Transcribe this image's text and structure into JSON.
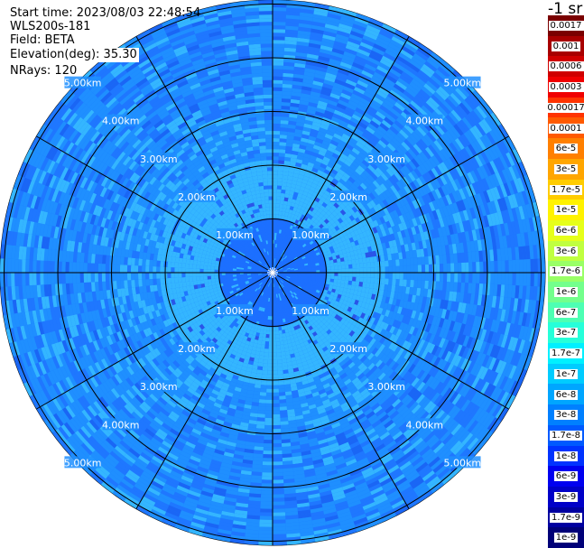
{
  "header": {
    "start_time": "Start time: 2023/08/03 22:48:54",
    "station": "WLS200s-181",
    "field": "Field: BETA",
    "elevation": "Elevation(deg): 35.30",
    "nrays": "NRays: 120"
  },
  "colorbar": {
    "unit_label": "-1 sr",
    "levels": [
      {
        "label": "0.0017",
        "color": "#7a0000"
      },
      {
        "label": "0.001",
        "color": "#a80000"
      },
      {
        "label": "0.0006",
        "color": "#cf0000"
      },
      {
        "label": "0.0003",
        "color": "#f00000"
      },
      {
        "label": "0.00017",
        "color": "#ff3300"
      },
      {
        "label": "0.0001",
        "color": "#ff5a00"
      },
      {
        "label": "6e-5",
        "color": "#ff8000"
      },
      {
        "label": "3e-5",
        "color": "#ffa600"
      },
      {
        "label": "1.7e-5",
        "color": "#ffcc00"
      },
      {
        "label": "1e-5",
        "color": "#fff200"
      },
      {
        "label": "6e-6",
        "color": "#e6ff1a"
      },
      {
        "label": "3e-6",
        "color": "#c0ff40"
      },
      {
        "label": "1.7e-6",
        "color": "#99ff66"
      },
      {
        "label": "1e-6",
        "color": "#73ff8c"
      },
      {
        "label": "6e-7",
        "color": "#4dffb3"
      },
      {
        "label": "3e-7",
        "color": "#26ffd9"
      },
      {
        "label": "1.7e-7",
        "color": "#00f0ff"
      },
      {
        "label": "1e-7",
        "color": "#00ccff"
      },
      {
        "label": "6e-8",
        "color": "#00a6ff"
      },
      {
        "label": "3e-8",
        "color": "#0080ff"
      },
      {
        "label": "1.7e-8",
        "color": "#005aff"
      },
      {
        "label": "1e-8",
        "color": "#0033ff"
      },
      {
        "label": "6e-9",
        "color": "#0000f0"
      },
      {
        "label": "3e-9",
        "color": "#0000c8"
      },
      {
        "label": "1.7e-9",
        "color": "#0000a0"
      },
      {
        "label": "1e-9",
        "color": "#000078"
      }
    ]
  },
  "plot": {
    "range_labels": [
      "1.00km",
      "2.00km",
      "3.00km",
      "4.00km",
      "5.00km"
    ],
    "max_range_km": 5.0,
    "colors": {
      "outer_light": "#1f8fff",
      "outer_mid": "#1f77ff",
      "outer_dark": "#1a66f5",
      "inner_light": "#34b6ff",
      "center": "#1c6fff",
      "speck": "#2a55e8"
    }
  }
}
